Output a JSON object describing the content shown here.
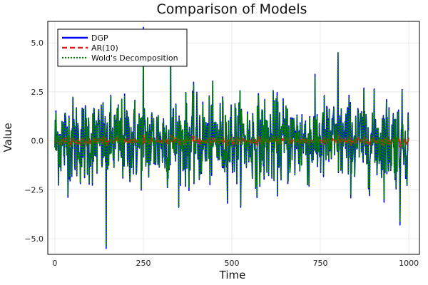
{
  "chart_data": {
    "type": "line",
    "title": "Comparison of Models",
    "xlabel": "Time",
    "ylabel": "Value",
    "xlim": [
      -20,
      1030
    ],
    "ylim": [
      -5.8,
      6.1
    ],
    "xticks": [
      0,
      250,
      500,
      750,
      1000
    ],
    "xtick_labels": [
      "0",
      "250",
      "500",
      "750",
      "1000"
    ],
    "yticks": [
      -5.0,
      -2.5,
      0.0,
      2.5,
      5.0
    ],
    "ytick_labels": [
      "−5.0",
      "−2.5",
      "0.0",
      "2.5",
      "5.0"
    ],
    "grid": true,
    "legend_position": "top-left",
    "n_points": 1000,
    "series": [
      {
        "name": "DGP",
        "color": "#0000ff",
        "style": "solid",
        "description": "noisy series, mostly within ±2.5, min about -5.5 near t=145, peaks about 5.8 near t=250"
      },
      {
        "name": "AR(10)",
        "color": "#e41a1c",
        "style": "dashed",
        "description": "near-zero fitted values, roughly between -0.3 and 0.3"
      },
      {
        "name": "Wold's Decomposition",
        "color": "#008000",
        "style": "dotted",
        "description": "closely tracks DGP, max about 4.5 near t=800"
      }
    ],
    "annotated_extremes": [
      {
        "x": 145,
        "y": -5.5
      },
      {
        "x": 250,
        "y": 5.8
      },
      {
        "x": 327,
        "y": 5.2
      },
      {
        "x": 800,
        "y": 4.5
      },
      {
        "x": 975,
        "y": -4.3
      }
    ]
  }
}
